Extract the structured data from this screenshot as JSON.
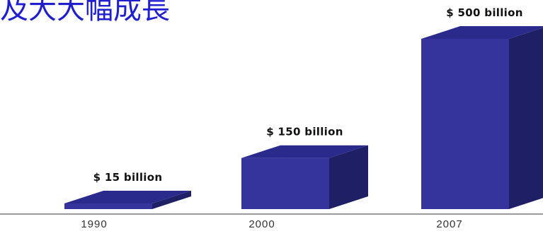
{
  "title": "及大大幅成長",
  "chart_data": {
    "type": "bar",
    "style": "3d",
    "title": "及大大幅成長",
    "categories": [
      "1990",
      "2000",
      "2007"
    ],
    "values": [
      15,
      150,
      500
    ],
    "data_labels": [
      "$ 15 billion",
      "$ 150 billion",
      "$ 500 billion"
    ],
    "xlabel": "",
    "ylabel": "",
    "ylim": [
      0,
      500
    ],
    "grid": false,
    "legend": "none",
    "colors": {
      "front": "#34349c",
      "top": "#2a2a8c",
      "side": "#1f1f66",
      "baseline": "#9a9a9a"
    }
  }
}
